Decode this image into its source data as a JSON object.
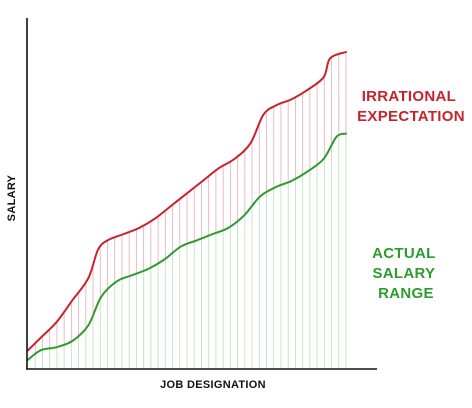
{
  "chart_data": {
    "type": "line",
    "title": "",
    "xlabel": "JOB DESIGNATION",
    "ylabel": "SALARY",
    "grid": false,
    "xlim": [
      0,
      100
    ],
    "ylim": [
      0,
      100
    ],
    "series": [
      {
        "name_lines": [
          "IRRATIONAL",
          "EXPECTATION"
        ],
        "color": "#c8232c",
        "points": [
          [
            0,
            5
          ],
          [
            4,
            9
          ],
          [
            9,
            14
          ],
          [
            14,
            21
          ],
          [
            19,
            28
          ],
          [
            22,
            37
          ],
          [
            25,
            40
          ],
          [
            30,
            42
          ],
          [
            35,
            44
          ],
          [
            40,
            47
          ],
          [
            45,
            51
          ],
          [
            50,
            55
          ],
          [
            55,
            59
          ],
          [
            60,
            63
          ],
          [
            65,
            66
          ],
          [
            70,
            71
          ],
          [
            74,
            80
          ],
          [
            78,
            83
          ],
          [
            83,
            85
          ],
          [
            88,
            88
          ],
          [
            93,
            92
          ],
          [
            95,
            98
          ],
          [
            100,
            100
          ]
        ]
      },
      {
        "name_lines": [
          "ACTUAL",
          "SALARY",
          "RANGE"
        ],
        "color": "#2e9b2e",
        "points": [
          [
            0,
            2
          ],
          [
            4,
            5
          ],
          [
            9,
            6
          ],
          [
            14,
            8
          ],
          [
            19,
            13
          ],
          [
            23,
            22
          ],
          [
            28,
            27
          ],
          [
            33,
            29
          ],
          [
            38,
            31
          ],
          [
            43,
            34
          ],
          [
            48,
            38
          ],
          [
            53,
            40
          ],
          [
            58,
            42
          ],
          [
            63,
            44
          ],
          [
            68,
            48
          ],
          [
            73,
            54
          ],
          [
            78,
            57
          ],
          [
            83,
            59
          ],
          [
            88,
            62
          ],
          [
            93,
            66
          ],
          [
            97,
            73
          ],
          [
            100,
            74
          ]
        ]
      }
    ]
  }
}
